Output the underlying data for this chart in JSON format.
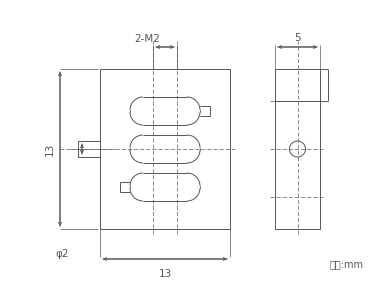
{
  "bg_color": "#ffffff",
  "line_color": "#555555",
  "line_width": 0.7,
  "figsize": [
    3.69,
    2.89
  ],
  "dpi": 100,
  "annotations": {
    "2M2_label": "2-M2",
    "dim13_bottom": "13",
    "dim13_left": "13",
    "phi2": "φ2",
    "dim5": "5",
    "unit": "单位:mm"
  }
}
